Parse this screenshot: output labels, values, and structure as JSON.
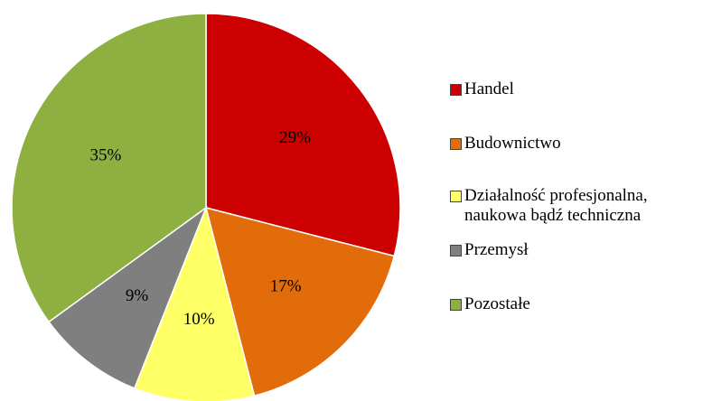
{
  "chart_data": {
    "type": "pie",
    "categories": [
      "Handel",
      "Budownictwo",
      "Działalność profesjonalna, naukowa bądź techniczna",
      "Przemysł",
      "Pozostałe"
    ],
    "values": [
      29,
      17,
      10,
      9,
      35
    ],
    "value_labels": [
      "29%",
      "17%",
      "10%",
      "9%",
      "35%"
    ],
    "colors": [
      "#cc0000",
      "#e36c0a",
      "#ffff66",
      "#7f7f7f",
      "#8db040"
    ],
    "legend": "right"
  }
}
